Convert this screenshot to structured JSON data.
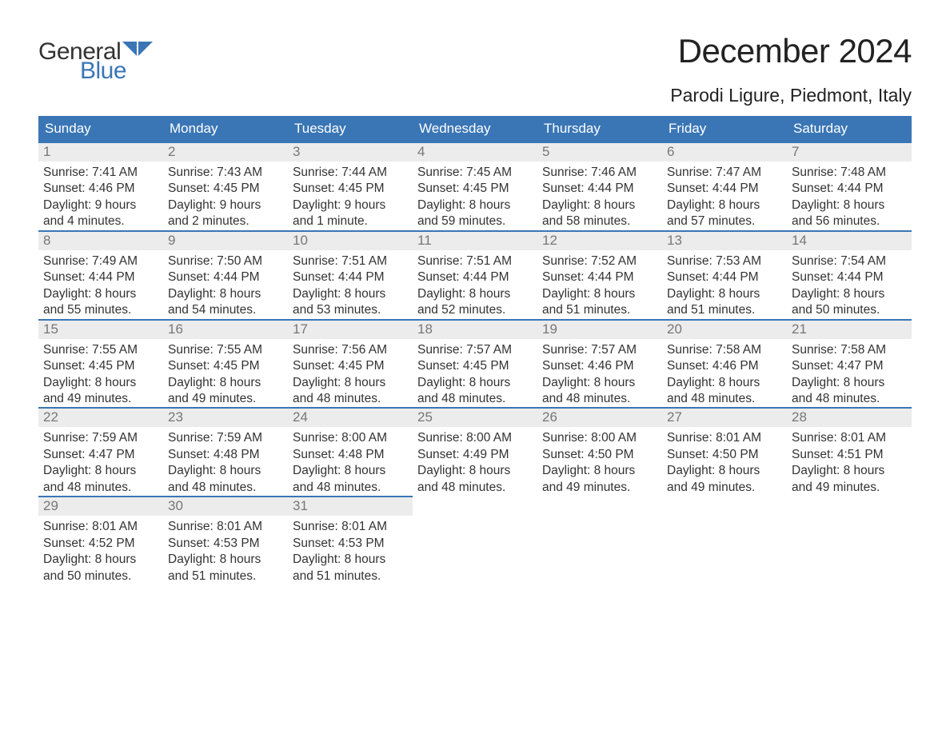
{
  "logo": {
    "word1": "General",
    "word2": "Blue",
    "flag_color": "#3a76b5"
  },
  "title": "December 2024",
  "location": "Parodi Ligure, Piedmont, Italy",
  "colors": {
    "header_bg": "#3a76b5",
    "header_text": "#ffffff",
    "daynum_bg": "#ececec",
    "daynum_text": "#777777",
    "body_text": "#333333",
    "row_border": "#3a76b5",
    "page_bg": "#ffffff"
  },
  "weekdays": [
    "Sunday",
    "Monday",
    "Tuesday",
    "Wednesday",
    "Thursday",
    "Friday",
    "Saturday"
  ],
  "weeks": [
    [
      {
        "n": "1",
        "sunrise": "Sunrise: 7:41 AM",
        "sunset": "Sunset: 4:46 PM",
        "d1": "Daylight: 9 hours",
        "d2": "and 4 minutes."
      },
      {
        "n": "2",
        "sunrise": "Sunrise: 7:43 AM",
        "sunset": "Sunset: 4:45 PM",
        "d1": "Daylight: 9 hours",
        "d2": "and 2 minutes."
      },
      {
        "n": "3",
        "sunrise": "Sunrise: 7:44 AM",
        "sunset": "Sunset: 4:45 PM",
        "d1": "Daylight: 9 hours",
        "d2": "and 1 minute."
      },
      {
        "n": "4",
        "sunrise": "Sunrise: 7:45 AM",
        "sunset": "Sunset: 4:45 PM",
        "d1": "Daylight: 8 hours",
        "d2": "and 59 minutes."
      },
      {
        "n": "5",
        "sunrise": "Sunrise: 7:46 AM",
        "sunset": "Sunset: 4:44 PM",
        "d1": "Daylight: 8 hours",
        "d2": "and 58 minutes."
      },
      {
        "n": "6",
        "sunrise": "Sunrise: 7:47 AM",
        "sunset": "Sunset: 4:44 PM",
        "d1": "Daylight: 8 hours",
        "d2": "and 57 minutes."
      },
      {
        "n": "7",
        "sunrise": "Sunrise: 7:48 AM",
        "sunset": "Sunset: 4:44 PM",
        "d1": "Daylight: 8 hours",
        "d2": "and 56 minutes."
      }
    ],
    [
      {
        "n": "8",
        "sunrise": "Sunrise: 7:49 AM",
        "sunset": "Sunset: 4:44 PM",
        "d1": "Daylight: 8 hours",
        "d2": "and 55 minutes."
      },
      {
        "n": "9",
        "sunrise": "Sunrise: 7:50 AM",
        "sunset": "Sunset: 4:44 PM",
        "d1": "Daylight: 8 hours",
        "d2": "and 54 minutes."
      },
      {
        "n": "10",
        "sunrise": "Sunrise: 7:51 AM",
        "sunset": "Sunset: 4:44 PM",
        "d1": "Daylight: 8 hours",
        "d2": "and 53 minutes."
      },
      {
        "n": "11",
        "sunrise": "Sunrise: 7:51 AM",
        "sunset": "Sunset: 4:44 PM",
        "d1": "Daylight: 8 hours",
        "d2": "and 52 minutes."
      },
      {
        "n": "12",
        "sunrise": "Sunrise: 7:52 AM",
        "sunset": "Sunset: 4:44 PM",
        "d1": "Daylight: 8 hours",
        "d2": "and 51 minutes."
      },
      {
        "n": "13",
        "sunrise": "Sunrise: 7:53 AM",
        "sunset": "Sunset: 4:44 PM",
        "d1": "Daylight: 8 hours",
        "d2": "and 51 minutes."
      },
      {
        "n": "14",
        "sunrise": "Sunrise: 7:54 AM",
        "sunset": "Sunset: 4:44 PM",
        "d1": "Daylight: 8 hours",
        "d2": "and 50 minutes."
      }
    ],
    [
      {
        "n": "15",
        "sunrise": "Sunrise: 7:55 AM",
        "sunset": "Sunset: 4:45 PM",
        "d1": "Daylight: 8 hours",
        "d2": "and 49 minutes."
      },
      {
        "n": "16",
        "sunrise": "Sunrise: 7:55 AM",
        "sunset": "Sunset: 4:45 PM",
        "d1": "Daylight: 8 hours",
        "d2": "and 49 minutes."
      },
      {
        "n": "17",
        "sunrise": "Sunrise: 7:56 AM",
        "sunset": "Sunset: 4:45 PM",
        "d1": "Daylight: 8 hours",
        "d2": "and 48 minutes."
      },
      {
        "n": "18",
        "sunrise": "Sunrise: 7:57 AM",
        "sunset": "Sunset: 4:45 PM",
        "d1": "Daylight: 8 hours",
        "d2": "and 48 minutes."
      },
      {
        "n": "19",
        "sunrise": "Sunrise: 7:57 AM",
        "sunset": "Sunset: 4:46 PM",
        "d1": "Daylight: 8 hours",
        "d2": "and 48 minutes."
      },
      {
        "n": "20",
        "sunrise": "Sunrise: 7:58 AM",
        "sunset": "Sunset: 4:46 PM",
        "d1": "Daylight: 8 hours",
        "d2": "and 48 minutes."
      },
      {
        "n": "21",
        "sunrise": "Sunrise: 7:58 AM",
        "sunset": "Sunset: 4:47 PM",
        "d1": "Daylight: 8 hours",
        "d2": "and 48 minutes."
      }
    ],
    [
      {
        "n": "22",
        "sunrise": "Sunrise: 7:59 AM",
        "sunset": "Sunset: 4:47 PM",
        "d1": "Daylight: 8 hours",
        "d2": "and 48 minutes."
      },
      {
        "n": "23",
        "sunrise": "Sunrise: 7:59 AM",
        "sunset": "Sunset: 4:48 PM",
        "d1": "Daylight: 8 hours",
        "d2": "and 48 minutes."
      },
      {
        "n": "24",
        "sunrise": "Sunrise: 8:00 AM",
        "sunset": "Sunset: 4:48 PM",
        "d1": "Daylight: 8 hours",
        "d2": "and 48 minutes."
      },
      {
        "n": "25",
        "sunrise": "Sunrise: 8:00 AM",
        "sunset": "Sunset: 4:49 PM",
        "d1": "Daylight: 8 hours",
        "d2": "and 48 minutes."
      },
      {
        "n": "26",
        "sunrise": "Sunrise: 8:00 AM",
        "sunset": "Sunset: 4:50 PM",
        "d1": "Daylight: 8 hours",
        "d2": "and 49 minutes."
      },
      {
        "n": "27",
        "sunrise": "Sunrise: 8:01 AM",
        "sunset": "Sunset: 4:50 PM",
        "d1": "Daylight: 8 hours",
        "d2": "and 49 minutes."
      },
      {
        "n": "28",
        "sunrise": "Sunrise: 8:01 AM",
        "sunset": "Sunset: 4:51 PM",
        "d1": "Daylight: 8 hours",
        "d2": "and 49 minutes."
      }
    ],
    [
      {
        "n": "29",
        "sunrise": "Sunrise: 8:01 AM",
        "sunset": "Sunset: 4:52 PM",
        "d1": "Daylight: 8 hours",
        "d2": "and 50 minutes."
      },
      {
        "n": "30",
        "sunrise": "Sunrise: 8:01 AM",
        "sunset": "Sunset: 4:53 PM",
        "d1": "Daylight: 8 hours",
        "d2": "and 51 minutes."
      },
      {
        "n": "31",
        "sunrise": "Sunrise: 8:01 AM",
        "sunset": "Sunset: 4:53 PM",
        "d1": "Daylight: 8 hours",
        "d2": "and 51 minutes."
      },
      null,
      null,
      null,
      null
    ]
  ]
}
